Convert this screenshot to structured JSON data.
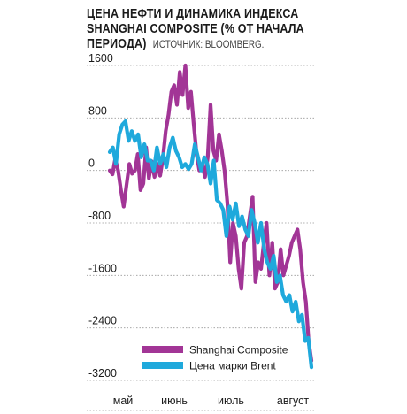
{
  "title": {
    "line1": "ЦЕНА НЕФТИ И ДИНАМИКА ИНДЕКСА",
    "line2": "SHANGHAI COMPOSITE (% ОТ НАЧАЛА",
    "line3": "ПЕРИОДА)",
    "source": "ИСТОЧНИК: BLOOMBERG."
  },
  "colors": {
    "shanghai": "#a23596",
    "brent": "#1fa9dc",
    "grid": "#9a9a9a",
    "text": "#1a1a1a"
  },
  "chart_data": {
    "type": "line",
    "title": "ЦЕНА НЕФТИ И ДИНАМИКА ИНДЕКСА SHANGHAI COMPOSITE (% ОТ НАЧАЛА ПЕРИОДА)",
    "xlabel": "",
    "ylabel": "",
    "ylim": [
      -3200,
      1600
    ],
    "yticks": [
      1600,
      800,
      0,
      -800,
      -1600,
      -2400,
      -3200
    ],
    "ytick_labels": [
      "1600",
      "800",
      "0",
      "-800",
      "-1600",
      "-2400",
      "-3200"
    ],
    "xticks": [
      "май",
      "июнь",
      "июль",
      "август"
    ],
    "grid": true,
    "legend_position": "bottom-right",
    "series": [
      {
        "name": "Shanghai Composite",
        "color": "#a23596",
        "values": [
          0,
          -60,
          180,
          0,
          -300,
          -550,
          -220,
          100,
          -50,
          0,
          250,
          -300,
          -200,
          350,
          -120,
          140,
          -100,
          100,
          -80,
          200,
          600,
          850,
          1200,
          1300,
          1000,
          1500,
          1150,
          1600,
          950,
          1200,
          700,
          250,
          0,
          100,
          -100,
          200,
          1000,
          300,
          150,
          550,
          300,
          0,
          -500,
          -1400,
          -800,
          -1000,
          -1500,
          -1800,
          -1100,
          -1000,
          -700,
          -400,
          -1700,
          -1400,
          -1500,
          -1100,
          -800,
          -1600,
          -1100,
          -1800,
          -1700,
          -1200,
          -1600,
          -1450,
          -1300,
          -1100,
          -1000,
          -900,
          -1200,
          -1700,
          -2000,
          -2600,
          -2900
        ]
      },
      {
        "name": "Цена марки Brent",
        "color": "#1fa9dc",
        "values": [
          280,
          350,
          100,
          550,
          700,
          750,
          450,
          600,
          450,
          550,
          200,
          400,
          150,
          150,
          0,
          350,
          100,
          250,
          50,
          350,
          500,
          300,
          200,
          50,
          100,
          20,
          100,
          400,
          200,
          0,
          200,
          100,
          -200,
          150,
          -450,
          -500,
          -600,
          -1000,
          -550,
          -750,
          -500,
          -850,
          -700,
          -900,
          -1000,
          -600,
          -800,
          -1100,
          -800,
          -1200,
          -1400,
          -1500,
          -1300,
          -1700,
          -1600,
          -1900,
          -2000,
          -1900,
          -2150,
          -2000,
          -2300,
          -2200,
          -2600,
          -2550,
          -3000
        ]
      }
    ]
  }
}
